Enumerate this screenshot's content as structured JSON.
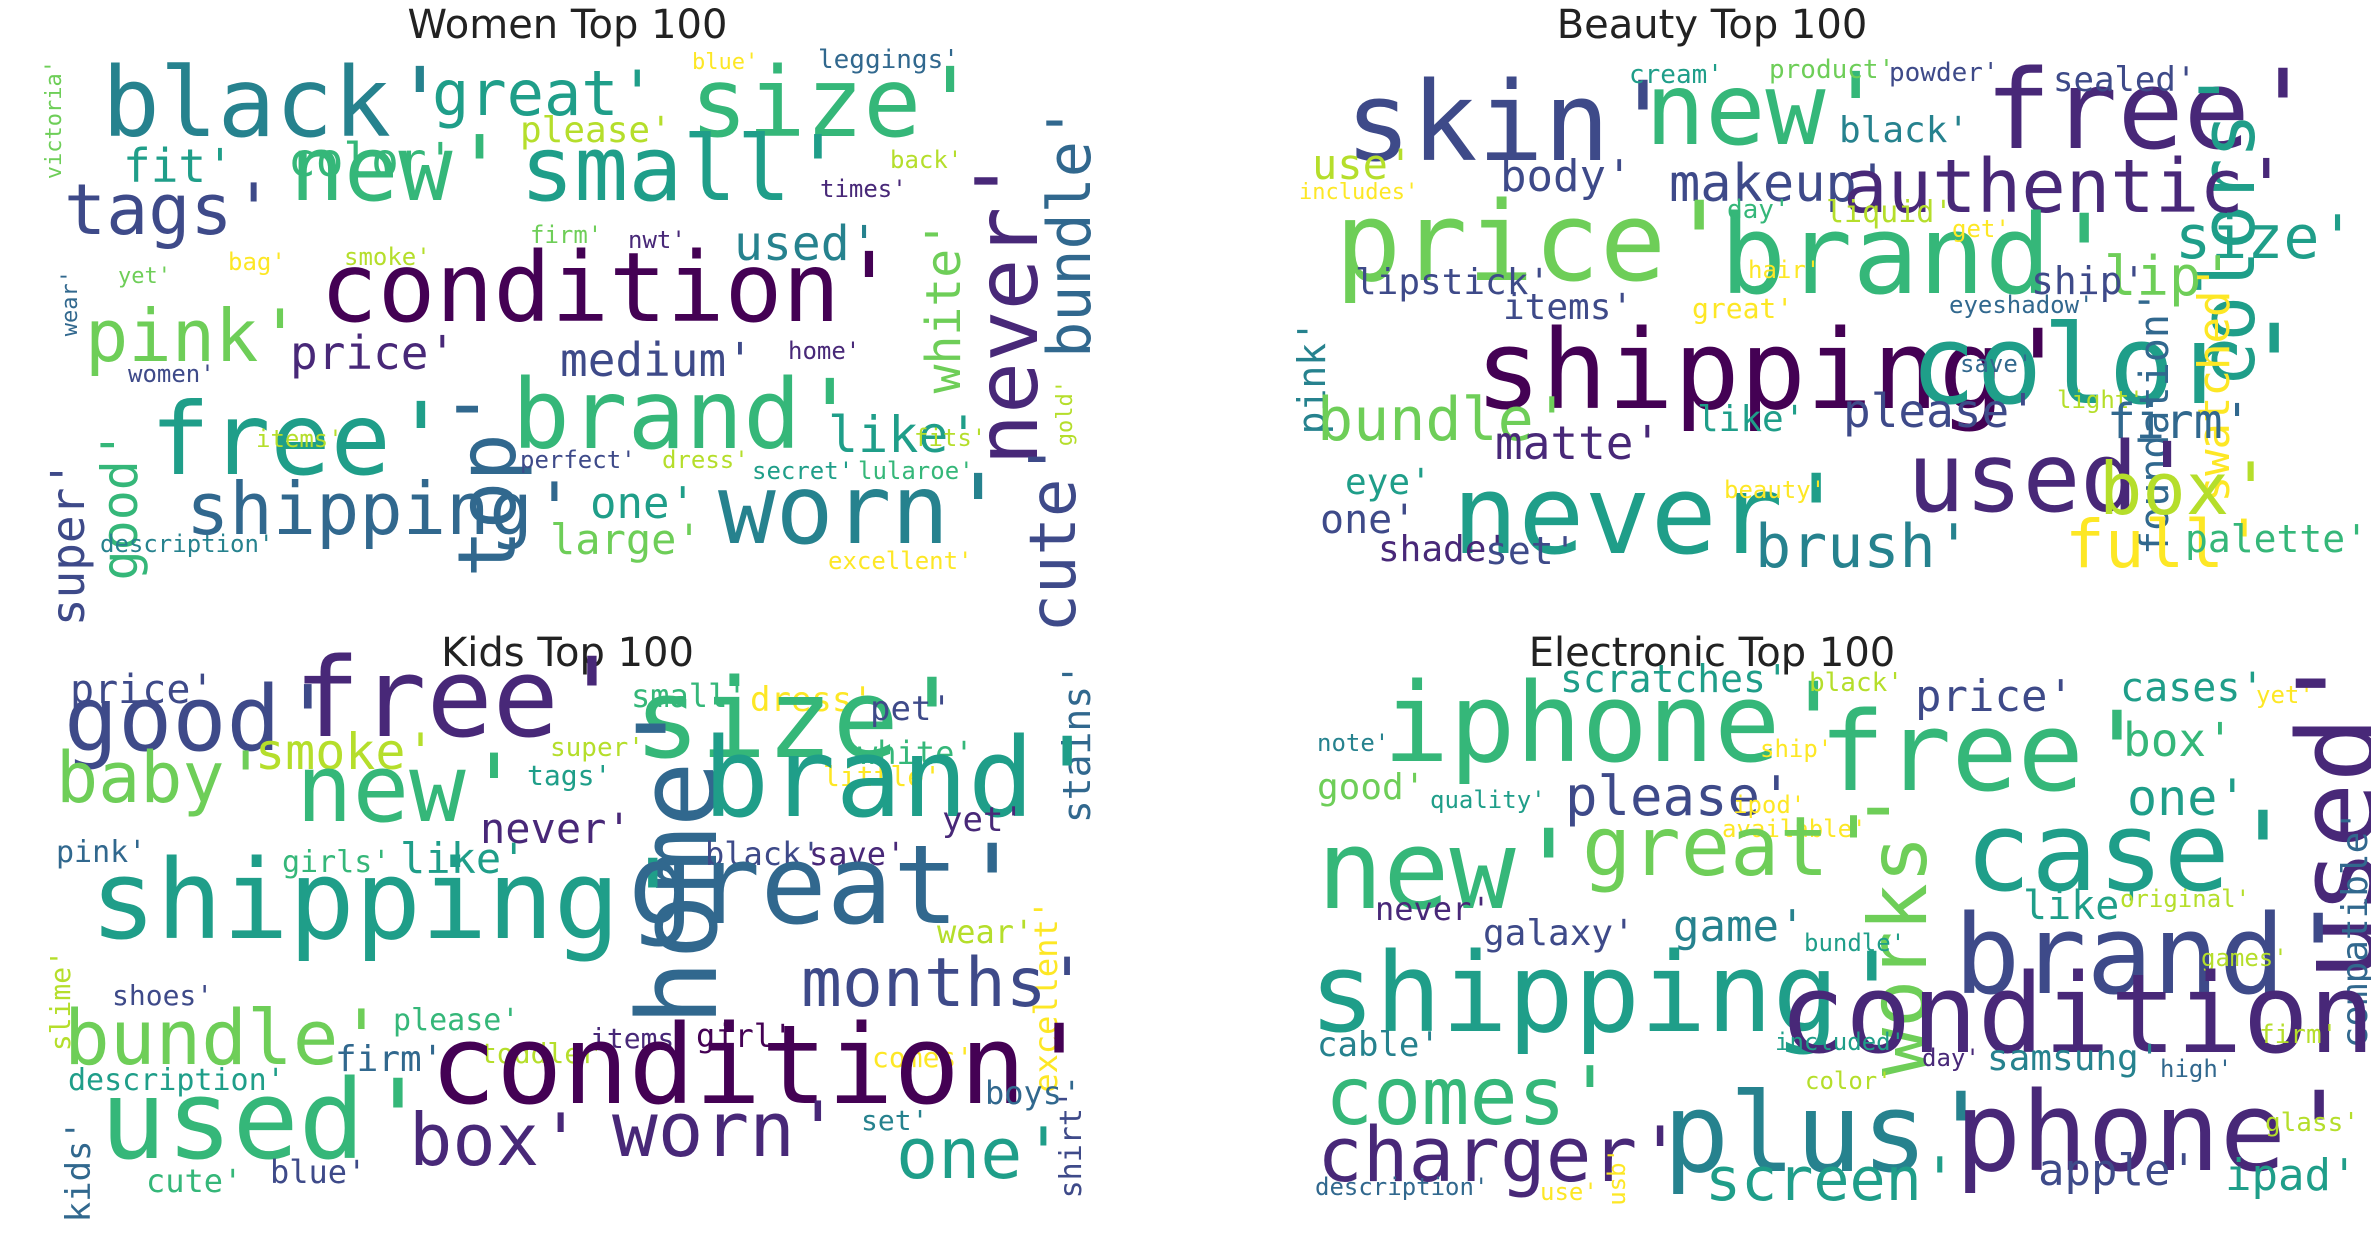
{
  "palette": {
    "v0": "#440154",
    "v1": "#482878",
    "v2": "#3e4a89",
    "v3": "#31688e",
    "v4": "#26828e",
    "v5": "#1f9e89",
    "v6": "#35b779",
    "v7": "#6ece58",
    "v8": "#b5de2b",
    "v9": "#fde725"
  },
  "panels": [
    {
      "id": "women",
      "title": "Women Top 100",
      "words": [
        {
          "t": "black'",
          "c": "v4"
        },
        {
          "t": "size'",
          "c": "v6"
        },
        {
          "t": "great'",
          "c": "v5"
        },
        {
          "t": "new'",
          "c": "v6"
        },
        {
          "t": "small'",
          "c": "v5"
        },
        {
          "t": "tags'",
          "c": "v2"
        },
        {
          "t": "fit'",
          "c": "v5"
        },
        {
          "t": "color'",
          "c": "v6"
        },
        {
          "t": "please'",
          "c": "v8"
        },
        {
          "t": "blue'",
          "c": "v9"
        },
        {
          "t": "leggings'",
          "c": "v3"
        },
        {
          "t": "victoria'",
          "c": "v7"
        },
        {
          "t": "back'",
          "c": "v8"
        },
        {
          "t": "times'",
          "c": "v1"
        },
        {
          "t": "bundle'",
          "c": "v3"
        },
        {
          "t": "never'",
          "c": "v1"
        },
        {
          "t": "white'",
          "c": "v7"
        },
        {
          "t": "condition'",
          "c": "v0"
        },
        {
          "t": "used'",
          "c": "v4"
        },
        {
          "t": "firm'",
          "c": "v7"
        },
        {
          "t": "nwt'",
          "c": "v1"
        },
        {
          "t": "smoke'",
          "c": "v8"
        },
        {
          "t": "bag'",
          "c": "v9"
        },
        {
          "t": "yet'",
          "c": "v7"
        },
        {
          "t": "wear'",
          "c": "v3"
        },
        {
          "t": "pink'",
          "c": "v7"
        },
        {
          "t": "price'",
          "c": "v1"
        },
        {
          "t": "medium'",
          "c": "v2"
        },
        {
          "t": "home'",
          "c": "v1"
        },
        {
          "t": "women'",
          "c": "v2"
        },
        {
          "t": "gold'",
          "c": "v8"
        },
        {
          "t": "free'",
          "c": "v5"
        },
        {
          "t": "brand'",
          "c": "v6"
        },
        {
          "t": "top'",
          "c": "v3"
        },
        {
          "t": "like'",
          "c": "v5"
        },
        {
          "t": "items'",
          "c": "v8"
        },
        {
          "t": "fits'",
          "c": "v8"
        },
        {
          "t": "good'",
          "c": "v6"
        },
        {
          "t": "shipping'",
          "c": "v3"
        },
        {
          "t": "worn'",
          "c": "v4"
        },
        {
          "t": "cute'",
          "c": "v2"
        },
        {
          "t": "one'",
          "c": "v5"
        },
        {
          "t": "perfect'",
          "c": "v2"
        },
        {
          "t": "dress'",
          "c": "v8"
        },
        {
          "t": "secret'",
          "c": "v5"
        },
        {
          "t": "lularoe'",
          "c": "v6"
        },
        {
          "t": "large'",
          "c": "v7"
        },
        {
          "t": "super'",
          "c": "v2"
        },
        {
          "t": "description'",
          "c": "v4"
        },
        {
          "t": "excellent'",
          "c": "v9"
        }
      ]
    },
    {
      "id": "beauty",
      "title": "Beauty Top 100",
      "words": [
        {
          "t": "skin'",
          "c": "v2"
        },
        {
          "t": "new'",
          "c": "v6"
        },
        {
          "t": "free'",
          "c": "v1"
        },
        {
          "t": "cream'",
          "c": "v5"
        },
        {
          "t": "product'",
          "c": "v7"
        },
        {
          "t": "powder'",
          "c": "v2"
        },
        {
          "t": "sealed'",
          "c": "v2"
        },
        {
          "t": "black'",
          "c": "v4"
        },
        {
          "t": "colors'",
          "c": "v5"
        },
        {
          "t": "use'",
          "c": "v8"
        },
        {
          "t": "includes'",
          "c": "v9"
        },
        {
          "t": "body'",
          "c": "v2"
        },
        {
          "t": "makeup'",
          "c": "v2"
        },
        {
          "t": "authentic'",
          "c": "v1"
        },
        {
          "t": "price'",
          "c": "v7"
        },
        {
          "t": "brand'",
          "c": "v6"
        },
        {
          "t": "day'",
          "c": "v6"
        },
        {
          "t": "liquid'",
          "c": "v8"
        },
        {
          "t": "get'",
          "c": "v9"
        },
        {
          "t": "size'",
          "c": "v5"
        },
        {
          "t": "lip'",
          "c": "v7"
        },
        {
          "t": "ship'",
          "c": "v2"
        },
        {
          "t": "lipstick'",
          "c": "v2"
        },
        {
          "t": "hair'",
          "c": "v9"
        },
        {
          "t": "items'",
          "c": "v2"
        },
        {
          "t": "great'",
          "c": "v9"
        },
        {
          "t": "eyeshadow'",
          "c": "v3"
        },
        {
          "t": "pink'",
          "c": "v4"
        },
        {
          "t": "shipping'",
          "c": "v0"
        },
        {
          "t": "color'",
          "c": "v5"
        },
        {
          "t": "save'",
          "c": "v3"
        },
        {
          "t": "swatched'",
          "c": "v9"
        },
        {
          "t": "foundation'",
          "c": "v3"
        },
        {
          "t": "bundle'",
          "c": "v7"
        },
        {
          "t": "matte'",
          "c": "v1"
        },
        {
          "t": "like'",
          "c": "v5"
        },
        {
          "t": "please'",
          "c": "v2"
        },
        {
          "t": "light'",
          "c": "v8"
        },
        {
          "t": "firm'",
          "c": "v3"
        },
        {
          "t": "used'",
          "c": "v1"
        },
        {
          "t": "eye'",
          "c": "v5"
        },
        {
          "t": "never'",
          "c": "v5"
        },
        {
          "t": "beauty'",
          "c": "v9"
        },
        {
          "t": "box'",
          "c": "v8"
        },
        {
          "t": "one'",
          "c": "v2"
        },
        {
          "t": "shade'",
          "c": "v1"
        },
        {
          "t": "set'",
          "c": "v2"
        },
        {
          "t": "brush'",
          "c": "v4"
        },
        {
          "t": "full'",
          "c": "v9"
        },
        {
          "t": "palette'",
          "c": "v6"
        }
      ]
    },
    {
      "id": "kids",
      "title": "Kids Top 100",
      "words": [
        {
          "t": "price'",
          "c": "v2"
        },
        {
          "t": "free'",
          "c": "v1"
        },
        {
          "t": "small'",
          "c": "v6"
        },
        {
          "t": "dress'",
          "c": "v9"
        },
        {
          "t": "size'",
          "c": "v6"
        },
        {
          "t": "pet'",
          "c": "v2"
        },
        {
          "t": "stains'",
          "c": "v3"
        },
        {
          "t": "good'",
          "c": "v2"
        },
        {
          "t": "super'",
          "c": "v8"
        },
        {
          "t": "white'",
          "c": "v6"
        },
        {
          "t": "smoke'",
          "c": "v8"
        },
        {
          "t": "tags'",
          "c": "v5"
        },
        {
          "t": "little'",
          "c": "v9"
        },
        {
          "t": "baby'",
          "c": "v7"
        },
        {
          "t": "new'",
          "c": "v6"
        },
        {
          "t": "home'",
          "c": "v3"
        },
        {
          "t": "brand'",
          "c": "v5"
        },
        {
          "t": "yet'",
          "c": "v1"
        },
        {
          "t": "never'",
          "c": "v1"
        },
        {
          "t": "pink'",
          "c": "v3"
        },
        {
          "t": "girls'",
          "c": "v6"
        },
        {
          "t": "like'",
          "c": "v5"
        },
        {
          "t": "black'",
          "c": "v2"
        },
        {
          "t": "save'",
          "c": "v1"
        },
        {
          "t": "shipping'",
          "c": "v5"
        },
        {
          "t": "great'",
          "c": "v3"
        },
        {
          "t": "wear'",
          "c": "v8"
        },
        {
          "t": "excellent'",
          "c": "v9"
        },
        {
          "t": "slime'",
          "c": "v8"
        },
        {
          "t": "shoes'",
          "c": "v2"
        },
        {
          "t": "please'",
          "c": "v6"
        },
        {
          "t": "items'",
          "c": "v1"
        },
        {
          "t": "girl'",
          "c": "v0"
        },
        {
          "t": "months'",
          "c": "v2"
        },
        {
          "t": "bundle'",
          "c": "v7"
        },
        {
          "t": "toddler'",
          "c": "v8"
        },
        {
          "t": "comes'",
          "c": "v9"
        },
        {
          "t": "firm'",
          "c": "v3"
        },
        {
          "t": "condition'",
          "c": "v0"
        },
        {
          "t": "description'",
          "c": "v5"
        },
        {
          "t": "used'",
          "c": "v6"
        },
        {
          "t": "boys'",
          "c": "v3"
        },
        {
          "t": "shirt'",
          "c": "v2"
        },
        {
          "t": "kids'",
          "c": "v3"
        },
        {
          "t": "box'",
          "c": "v1"
        },
        {
          "t": "worn'",
          "c": "v1"
        },
        {
          "t": "set'",
          "c": "v4"
        },
        {
          "t": "one'",
          "c": "v5"
        },
        {
          "t": "cute'",
          "c": "v6"
        },
        {
          "t": "blue'",
          "c": "v2"
        }
      ]
    },
    {
      "id": "electronic",
      "title": "Electronic Top 100",
      "words": [
        {
          "t": "iphone'",
          "c": "v6"
        },
        {
          "t": "scratches'",
          "c": "v5"
        },
        {
          "t": "black'",
          "c": "v8"
        },
        {
          "t": "price'",
          "c": "v2"
        },
        {
          "t": "cases'",
          "c": "v5"
        },
        {
          "t": "yet'",
          "c": "v9"
        },
        {
          "t": "note'",
          "c": "v4"
        },
        {
          "t": "ship'",
          "c": "v9"
        },
        {
          "t": "free'",
          "c": "v6"
        },
        {
          "t": "box'",
          "c": "v6"
        },
        {
          "t": "used'",
          "c": "v1"
        },
        {
          "t": "good'",
          "c": "v7"
        },
        {
          "t": "quality'",
          "c": "v5"
        },
        {
          "t": "please'",
          "c": "v2"
        },
        {
          "t": "ipod'",
          "c": "v9"
        },
        {
          "t": "one'",
          "c": "v5"
        },
        {
          "t": "new'",
          "c": "v6"
        },
        {
          "t": "available'",
          "c": "v9"
        },
        {
          "t": "great'",
          "c": "v7"
        },
        {
          "t": "works'",
          "c": "v7"
        },
        {
          "t": "case'",
          "c": "v5"
        },
        {
          "t": "compatible'",
          "c": "v3"
        },
        {
          "t": "never'",
          "c": "v1"
        },
        {
          "t": "like'",
          "c": "v5"
        },
        {
          "t": "original'",
          "c": "v8"
        },
        {
          "t": "galaxy'",
          "c": "v2"
        },
        {
          "t": "game'",
          "c": "v4"
        },
        {
          "t": "bundle'",
          "c": "v5"
        },
        {
          "t": "brand'",
          "c": "v2"
        },
        {
          "t": "games'",
          "c": "v8"
        },
        {
          "t": "shipping'",
          "c": "v5"
        },
        {
          "t": "condition'",
          "c": "v1"
        },
        {
          "t": "cable'",
          "c": "v4"
        },
        {
          "t": "included'",
          "c": "v5"
        },
        {
          "t": "firm'",
          "c": "v8"
        },
        {
          "t": "samsung'",
          "c": "v4"
        },
        {
          "t": "comes'",
          "c": "v6"
        },
        {
          "t": "day'",
          "c": "v1"
        },
        {
          "t": "high'",
          "c": "v3"
        },
        {
          "t": "color'",
          "c": "v8"
        },
        {
          "t": "plus'",
          "c": "v4"
        },
        {
          "t": "phone'",
          "c": "v1"
        },
        {
          "t": "charger'",
          "c": "v1"
        },
        {
          "t": "glass'",
          "c": "v8"
        },
        {
          "t": "screen'",
          "c": "v5"
        },
        {
          "t": "apple'",
          "c": "v2"
        },
        {
          "t": "ipad'",
          "c": "v5"
        },
        {
          "t": "description'",
          "c": "v3"
        },
        {
          "t": "use'",
          "c": "v9"
        },
        {
          "t": "usb'",
          "c": "v9"
        }
      ]
    }
  ]
}
